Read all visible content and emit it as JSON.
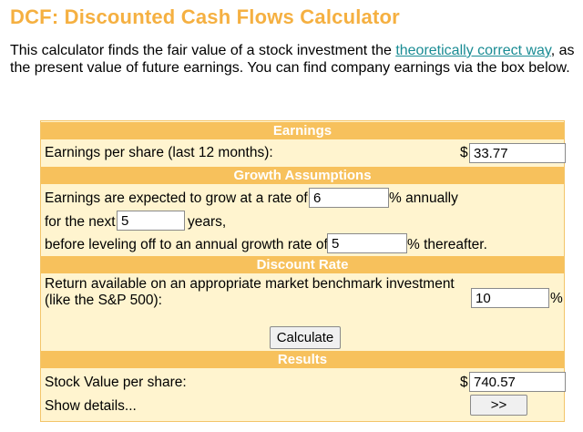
{
  "page": {
    "title": "DCF: Discounted Cash Flows Calculator",
    "intro_before": "This calculator finds the fair value of a stock investment the ",
    "intro_link": "theoretically correct way",
    "intro_after": ", as the present value of future earnings. You can find company earnings via the box below."
  },
  "calculator": {
    "earnings_header": "Earnings",
    "eps_label": "Earnings per share (last 12 months):",
    "eps_currency": "$",
    "eps_value": "33.77",
    "growth_header": "Growth Assumptions",
    "growth_rate_prefix": "Earnings are expected to grow at a rate of",
    "growth_rate_value": "6",
    "growth_rate_suffix": "% annually",
    "years_prefix": "for the next",
    "years_value": "5",
    "years_suffix": "years,",
    "terminal_prefix": "before leveling off to an annual growth rate of",
    "terminal_value": "5",
    "terminal_suffix": "% thereafter.",
    "discount_header": "Discount Rate",
    "return_label_line1": "Return available on an appropriate market benchmark investment",
    "return_label_line2": "(like the S&P 500):",
    "return_value": "10",
    "return_suffix": "%",
    "calculate_label": "Calculate",
    "results_header": "Results",
    "stock_value_label": "Stock Value per share:",
    "stock_value_currency": "$",
    "stock_value": "740.57",
    "show_details_label": "Show details...",
    "show_details_button": ">>"
  }
}
